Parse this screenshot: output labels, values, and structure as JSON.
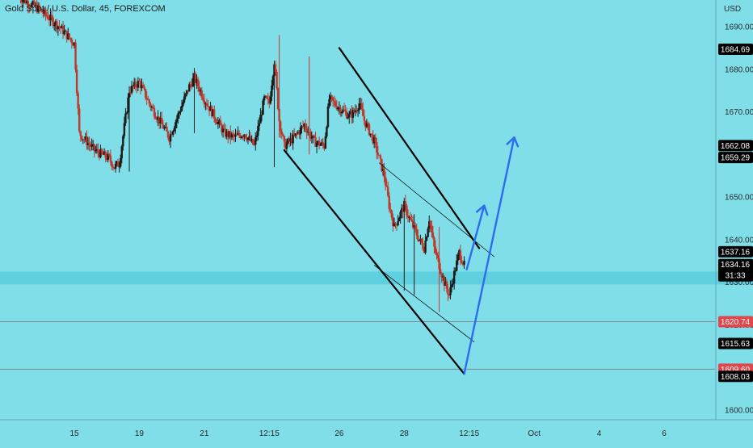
{
  "header": {
    "title": "Gold Spot / U.S. Dollar, 45, FOREXCOM"
  },
  "colors": {
    "background": "#7fdee8",
    "band": "#5fd0de",
    "candle_up": "#1b1b1b",
    "candle_down": "#c0392b",
    "channel": "#000000",
    "arrow": "#2b6cf0",
    "tag_dark": "#000000",
    "tag_red": "#e0464b",
    "hline": "#7a8a8f"
  },
  "chart_data": {
    "type": "candlestick",
    "title": "Gold Spot / U.S. Dollar, 45, FOREXCOM",
    "currency_label": "USD",
    "ylim": [
      1597,
      1697
    ],
    "y_ticks": [
      1600,
      1610,
      1620,
      1630,
      1640,
      1650,
      1660,
      1670,
      1680,
      1690
    ],
    "x_ticks": [
      {
        "label": "15",
        "index": 11
      },
      {
        "label": "19",
        "index": 24
      },
      {
        "label": "21",
        "index": 37
      },
      {
        "label": "12:15",
        "index": 50
      },
      {
        "label": "26",
        "index": 64
      },
      {
        "label": "28",
        "index": 77
      },
      {
        "label": "12:15",
        "index": 90
      },
      {
        "label": "Oct",
        "index": 103
      },
      {
        "label": "4",
        "index": 116
      },
      {
        "label": "6",
        "index": 129
      }
    ],
    "price_path": [
      [
        0,
        1697
      ],
      [
        4,
        1694
      ],
      [
        8,
        1690
      ],
      [
        11,
        1686
      ],
      [
        12,
        1665
      ],
      [
        15,
        1661
      ],
      [
        18,
        1659
      ],
      [
        19,
        1657
      ],
      [
        20,
        1658
      ],
      [
        22,
        1675
      ],
      [
        24,
        1677
      ],
      [
        26,
        1672
      ],
      [
        28,
        1668
      ],
      [
        30,
        1664
      ],
      [
        32,
        1670
      ],
      [
        34,
        1676
      ],
      [
        35,
        1678
      ],
      [
        37,
        1673
      ],
      [
        39,
        1669
      ],
      [
        41,
        1665
      ],
      [
        43,
        1664
      ],
      [
        45,
        1665
      ],
      [
        47,
        1662
      ],
      [
        49,
        1673
      ],
      [
        50,
        1672
      ],
      [
        51,
        1682
      ],
      [
        52,
        1668
      ],
      [
        53,
        1662
      ],
      [
        55,
        1664
      ],
      [
        57,
        1667
      ],
      [
        59,
        1663
      ],
      [
        61,
        1662
      ],
      [
        62,
        1673
      ],
      [
        64,
        1671
      ],
      [
        66,
        1669
      ],
      [
        67,
        1670
      ],
      [
        68,
        1672
      ],
      [
        69,
        1668
      ],
      [
        71,
        1663
      ],
      [
        73,
        1655
      ],
      [
        74,
        1648
      ],
      [
        75,
        1643
      ],
      [
        77,
        1648
      ],
      [
        78,
        1645
      ],
      [
        80,
        1640
      ],
      [
        81,
        1638
      ],
      [
        82,
        1645
      ],
      [
        83,
        1638
      ],
      [
        84,
        1634
      ],
      [
        85,
        1630
      ],
      [
        86,
        1627
      ],
      [
        87,
        1632
      ],
      [
        88,
        1637
      ],
      [
        89,
        1634
      ]
    ],
    "spikes": [
      {
        "i": 52,
        "h": 1688,
        "l": 1664
      },
      {
        "i": 51,
        "h": 1682,
        "l": 1657
      },
      {
        "i": 58,
        "h": 1683,
        "l": 1660
      },
      {
        "i": 35,
        "h": 1680,
        "l": 1665
      },
      {
        "i": 22,
        "h": 1676,
        "l": 1656
      },
      {
        "i": 77,
        "h": 1649,
        "l": 1628
      },
      {
        "i": 79,
        "h": 1646,
        "l": 1627
      },
      {
        "i": 84,
        "h": 1643,
        "l": 1623
      }
    ],
    "channel_lines": [
      {
        "x": [
          53,
          89
        ],
        "y": [
          1661,
          1608.5
        ],
        "style": "solid"
      },
      {
        "x": [
          64,
          92
        ],
        "y": [
          1685,
          1638
        ],
        "style": "solid"
      },
      {
        "x": [
          72,
          95
        ],
        "y": [
          1658,
          1636
        ],
        "style": "thin"
      },
      {
        "x": [
          71,
          91
        ],
        "y": [
          1634,
          1616
        ],
        "style": "thin"
      }
    ],
    "projection_arrows": [
      {
        "x": [
          89,
          99
        ],
        "y": [
          1608.5,
          1664
        ],
        "head": true
      },
      {
        "x": [
          89.5,
          93
        ],
        "y": [
          1633,
          1648
        ],
        "head": true
      }
    ],
    "horizontal_lines": [
      {
        "y": 1620.74
      },
      {
        "y": 1609.6
      }
    ],
    "highlight_band": [
      1629.5,
      1632.5
    ],
    "price_tags": [
      {
        "value": "1684.69",
        "y": 1684.69,
        "style": "dark"
      },
      {
        "value": "1662.08",
        "y": 1662.08,
        "style": "dark"
      },
      {
        "value": "1659.29",
        "y": 1659.29,
        "style": "dark"
      },
      {
        "value": "1637.16",
        "y": 1637.16,
        "style": "dark"
      },
      {
        "value": "1634.16",
        "y": 1634.16,
        "style": "current",
        "sub": "31:33"
      },
      {
        "value": "1620.74",
        "y": 1620.74,
        "style": "red"
      },
      {
        "value": "1615.63",
        "y": 1615.63,
        "style": "dark"
      },
      {
        "value": "1609.60",
        "y": 1609.6,
        "style": "red"
      },
      {
        "value": "1608.03",
        "y": 1607.9,
        "style": "dark"
      }
    ]
  }
}
